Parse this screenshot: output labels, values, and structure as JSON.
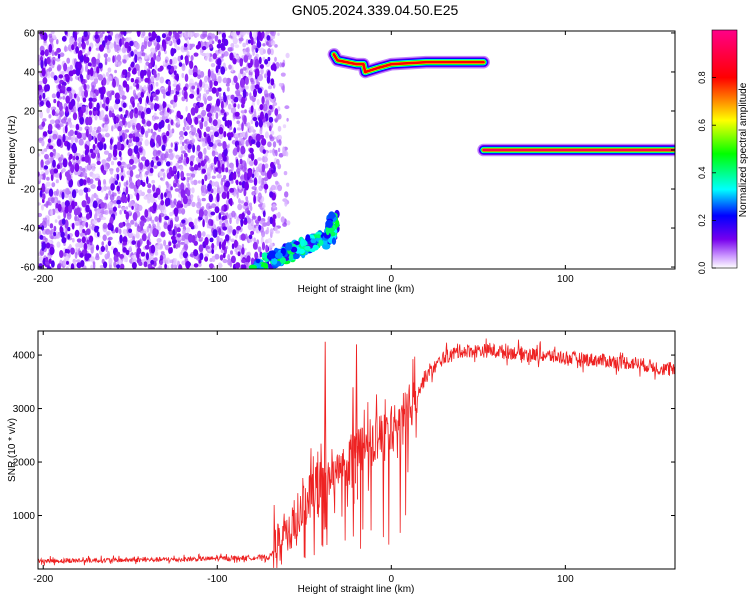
{
  "title": "GN05.2024.339.04.50.E25",
  "chart_data": [
    {
      "type": "heatmap",
      "xlabel": "Height of straight line (km)",
      "ylabel": "Frequency (Hz)",
      "xlim": [
        -203,
        163
      ],
      "ylim": [
        -61,
        61
      ],
      "xticks": [
        -200,
        -100,
        0,
        100
      ],
      "yticks": [
        -60,
        -40,
        -20,
        0,
        20,
        40,
        60
      ],
      "colorbar": {
        "label": "Normalized spectral amplitude",
        "range": [
          0,
          1
        ],
        "ticks": [
          0.0,
          0.2,
          0.4,
          0.6,
          0.8
        ],
        "colors": [
          "#ffffff",
          "#cc99ff",
          "#7700ee",
          "#0000ff",
          "#00ffff",
          "#00ff00",
          "#ffff00",
          "#ff0000",
          "#ff0088"
        ]
      },
      "features": [
        {
          "kind": "scattered-noise",
          "x_range": [
            -203,
            -66
          ],
          "y_range": [
            -61,
            61
          ],
          "amplitude": 0.1
        },
        {
          "kind": "ridge",
          "points": [
            [
              -78,
              -60
            ],
            [
              -65,
              -55
            ],
            [
              -50,
              -49
            ],
            [
              -35,
              -45
            ],
            [
              -33,
              -35
            ]
          ],
          "amplitude": 0.45
        },
        {
          "kind": "ridge",
          "points": [
            [
              -33,
              49
            ],
            [
              -31,
              46
            ],
            [
              -20,
              44
            ],
            [
              -16,
              44
            ],
            [
              -15,
              40
            ],
            [
              -8,
              42
            ],
            [
              0,
              44
            ],
            [
              20,
              45
            ],
            [
              53,
              45
            ]
          ],
          "amplitude": 0.85
        },
        {
          "kind": "ridge",
          "points": [
            [
              53,
              0
            ],
            [
              163,
              0
            ]
          ],
          "amplitude": 0.95
        }
      ]
    },
    {
      "type": "line",
      "xlabel": "Height of straight line (km)",
      "ylabel": "SNR (10 * v/v)",
      "xlim": [
        -203,
        163
      ],
      "ylim": [
        0,
        4450
      ],
      "xticks": [
        -200,
        -100,
        0,
        100
      ],
      "yticks": [
        1000,
        2000,
        3000,
        4000
      ],
      "color": "#ee2222",
      "envelope": [
        {
          "x": -203,
          "y": 150
        },
        {
          "x": -120,
          "y": 180
        },
        {
          "x": -70,
          "y": 220
        },
        {
          "x": -55,
          "y": 900
        },
        {
          "x": -45,
          "y": 1500
        },
        {
          "x": -30,
          "y": 1800
        },
        {
          "x": -20,
          "y": 2200
        },
        {
          "x": -10,
          "y": 2400
        },
        {
          "x": 0,
          "y": 2600
        },
        {
          "x": 10,
          "y": 3000
        },
        {
          "x": 20,
          "y": 3600
        },
        {
          "x": 30,
          "y": 3950
        },
        {
          "x": 40,
          "y": 4080
        },
        {
          "x": 60,
          "y": 4080
        },
        {
          "x": 100,
          "y": 3950
        },
        {
          "x": 140,
          "y": 3850
        },
        {
          "x": 163,
          "y": 3700
        }
      ],
      "spikes": [
        {
          "x": -38,
          "y": 4250
        },
        {
          "x": -20,
          "y": 4200
        },
        {
          "x": -22,
          "y": 3400
        }
      ]
    }
  ]
}
